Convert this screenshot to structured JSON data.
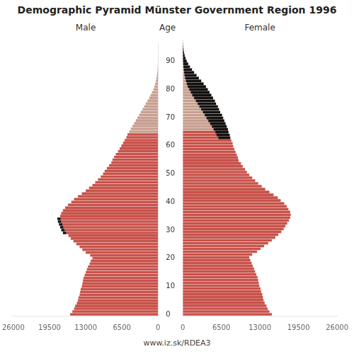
{
  "chart_data": {
    "type": "bar",
    "orientation": "horizontal",
    "title": "Demographic Pyramid Münster Government Region 1996",
    "subtitle": "www.iz.sk/RDEA3",
    "ylabel": "Age",
    "grid": false,
    "categories": [
      0,
      null,
      null,
      null,
      null,
      null,
      null,
      null,
      null,
      null,
      10,
      null,
      null,
      null,
      null,
      null,
      null,
      null,
      null,
      null,
      20,
      null,
      null,
      null,
      null,
      null,
      null,
      null,
      null,
      null,
      30,
      null,
      null,
      null,
      null,
      null,
      null,
      null,
      null,
      null,
      40,
      null,
      null,
      null,
      null,
      null,
      null,
      null,
      null,
      null,
      50,
      null,
      null,
      null,
      null,
      null,
      null,
      null,
      null,
      null,
      60,
      null,
      null,
      null,
      null,
      null,
      null,
      null,
      null,
      null,
      70,
      null,
      null,
      null,
      null,
      null,
      null,
      null,
      null,
      null,
      80,
      null,
      null,
      null,
      null,
      null,
      null,
      null,
      null,
      null,
      90,
      null,
      null,
      null,
      null,
      null,
      null
    ],
    "xlim": [
      0,
      26000
    ],
    "xticks": [
      0,
      6500,
      13000,
      19500,
      26000
    ],
    "x2lim": [
      26000,
      0
    ],
    "x2ticks": [
      26000,
      19500,
      13000,
      6500,
      0
    ],
    "series": [
      {
        "name": "Male",
        "axis": "x2",
        "values": [
          15800,
          15400,
          15100,
          14900,
          14600,
          14400,
          14300,
          14100,
          14000,
          13900,
          13700,
          13600,
          13500,
          13400,
          13200,
          13000,
          12800,
          12600,
          12300,
          12100,
          11800,
          12200,
          13000,
          13600,
          14100,
          14700,
          15200,
          15700,
          16100,
          16500,
          16800,
          17000,
          17200,
          17400,
          17500,
          17600,
          17400,
          17100,
          16700,
          16200,
          15600,
          15100,
          14400,
          13700,
          13000,
          12400,
          11800,
          11300,
          10800,
          10300,
          9900,
          9600,
          9200,
          8800,
          8400,
          8200,
          7900,
          7600,
          7200,
          6900,
          6600,
          6300,
          6000,
          5700,
          5500,
          5200,
          4900,
          4600,
          4300,
          4000,
          3700,
          3400,
          3100,
          2800,
          2500,
          2200,
          1900,
          1600,
          1350,
          1100,
          850,
          680,
          520,
          400,
          300,
          225,
          165,
          115,
          78,
          50,
          30,
          17,
          10,
          5,
          2,
          1,
          0
        ],
        "colors": [
          "#c8524a",
          "#c8524a",
          "#c8524a",
          "#c8524a",
          "#c8524a",
          "#c8524a",
          "#c8524a",
          "#c8524a",
          "#c8524a",
          "#c8524a",
          "#c8524a",
          "#c8524a",
          "#c8524a",
          "#c8524a",
          "#c8524a",
          "#c8524a",
          "#c8524a",
          "#c8524a",
          "#c8524a",
          "#c8524a",
          "#c8524a",
          "#c8524a",
          "#c8524a",
          "#c8524a",
          "#c8524a",
          "#c8524a",
          "#c8524a",
          "#c8524a",
          "#c8524a",
          "#c8524a",
          "#c8524a",
          "#c8524a",
          "#c8524a",
          "#c8524a",
          "#c8524a",
          "#c8524a",
          "#c8524a",
          "#c8524a",
          "#c8524a",
          "#c8524a",
          "#c8524a",
          "#c8524a",
          "#c8524a",
          "#c8524a",
          "#c8524a",
          "#c8524a",
          "#c8524a",
          "#c8524a",
          "#c8524a",
          "#c8524a",
          "#c8524a",
          "#c8524a",
          "#c8524a",
          "#c8524a",
          "#c8524a",
          "#c8524a",
          "#c8524a",
          "#c8524a",
          "#c8524a",
          "#c8524a",
          "#c8524a",
          "#c8524a",
          "#c8524a",
          "#c8524a",
          "#c8524a",
          "#c8a090",
          "#c8a090",
          "#c8a090",
          "#c8a090",
          "#c8a090",
          "#c8a090",
          "#c8a090",
          "#c8a090",
          "#c8a090",
          "#c8a090",
          "#c8a090",
          "#c8a090",
          "#c8a090",
          "#c8a090",
          "#c8a090",
          "#c8a090",
          "#c8a090",
          "#c8a090",
          "#c8a090",
          "#c8a090",
          "#c8a090",
          "#c8a090",
          "#c8a090",
          "#c8a090",
          "#c8a090",
          "#c8a090",
          "#c8a090",
          "#c8a090",
          "#c8a090",
          "#c8a090",
          "#c8a090",
          "#c8a090"
        ]
      },
      {
        "axis": "x2",
        "color": "#111111",
        "values": [
          null,
          null,
          null,
          null,
          null,
          null,
          null,
          null,
          null,
          null,
          null,
          null,
          null,
          null,
          null,
          null,
          null,
          null,
          null,
          null,
          null,
          null,
          null,
          null,
          null,
          null,
          null,
          null,
          null,
          600,
          600,
          600,
          600,
          600,
          600,
          null,
          null,
          null,
          null,
          null,
          null,
          null,
          null,
          null,
          null,
          null,
          null,
          null,
          null,
          null,
          null,
          null,
          null,
          null,
          null,
          null,
          null,
          null,
          null,
          null,
          null,
          null,
          null,
          null,
          null,
          null,
          null,
          null,
          null,
          null,
          null,
          null,
          null,
          null,
          null,
          null,
          null,
          null,
          null,
          null,
          null,
          null,
          null,
          null,
          null,
          null,
          null,
          null,
          null,
          null,
          null,
          null,
          null,
          null,
          null,
          null,
          null
        ]
      },
      {
        "name": "Female",
        "values": [
          15000,
          14600,
          14300,
          14100,
          13800,
          13600,
          13500,
          13400,
          13200,
          13100,
          12900,
          12800,
          12700,
          12600,
          12400,
          12200,
          12000,
          11800,
          11600,
          11400,
          11200,
          11700,
          12500,
          13100,
          13700,
          14400,
          15000,
          15600,
          16100,
          16600,
          17000,
          17300,
          17600,
          17900,
          18100,
          18200,
          18100,
          17800,
          17500,
          17100,
          16500,
          16000,
          15300,
          14600,
          13900,
          13300,
          12700,
          12200,
          11700,
          11200,
          10800,
          10500,
          10100,
          9800,
          9400,
          9300,
          9100,
          8900,
          8700,
          8500,
          8400,
          8200,
          8000,
          7900,
          7700,
          7600,
          7400,
          7200,
          7000,
          6800,
          6600,
          6300,
          6100,
          5900,
          5600,
          5400,
          5100,
          4800,
          4500,
          4200,
          3900,
          3500,
          3100,
          2700,
          2300,
          1900,
          1550,
          1200,
          900,
          650,
          460,
          300,
          195,
          120,
          68,
          35,
          15
        ],
        "colors": [
          "#c8524a",
          "#c8524a",
          "#c8524a",
          "#c8524a",
          "#c8524a",
          "#c8524a",
          "#c8524a",
          "#c8524a",
          "#c8524a",
          "#c8524a",
          "#c8524a",
          "#c8524a",
          "#c8524a",
          "#c8524a",
          "#c8524a",
          "#c8524a",
          "#c8524a",
          "#c8524a",
          "#c8524a",
          "#c8524a",
          "#c8524a",
          "#c8524a",
          "#c8524a",
          "#c8524a",
          "#c8524a",
          "#c8524a",
          "#c8524a",
          "#c8524a",
          "#c8524a",
          "#c8524a",
          "#c8524a",
          "#c8524a",
          "#c8524a",
          "#c8524a",
          "#c8524a",
          "#c8524a",
          "#c8524a",
          "#c8524a",
          "#c8524a",
          "#c8524a",
          "#c8524a",
          "#c8524a",
          "#c8524a",
          "#c8524a",
          "#c8524a",
          "#c8524a",
          "#c8524a",
          "#c8524a",
          "#c8524a",
          "#c8524a",
          "#c8524a",
          "#c8524a",
          "#c8524a",
          "#c8524a",
          "#c8524a",
          "#c8524a",
          "#c8524a",
          "#c8524a",
          "#c8524a",
          "#c8524a",
          "#c8524a",
          "#c8524a",
          "#c8524a",
          "#c8524a",
          "#c8524a",
          "#c8a090",
          "#c8a090",
          "#c8a090",
          "#c8a090",
          "#c8a090",
          "#c8a090",
          "#c8a090",
          "#c8a090",
          "#c8a090",
          "#c8a090",
          "#c8a090",
          "#c8a090",
          "#c8a090",
          "#c8a090",
          "#c8a090",
          "#c8a090",
          "#c8a090",
          "#c8a090",
          "#c8a090",
          "#c8a090",
          "#c8a090",
          "#c8a090",
          "#c8a090",
          "#c8a090",
          "#c8a090",
          "#c8a090",
          "#c8a090",
          "#c8a090",
          "#c8a090",
          "#c8a090",
          "#c8a090",
          "#c8a090"
        ]
      },
      {
        "color": "#111111",
        "values": [
          null,
          null,
          null,
          null,
          null,
          null,
          null,
          null,
          null,
          null,
          null,
          null,
          null,
          null,
          null,
          null,
          null,
          null,
          null,
          null,
          null,
          null,
          null,
          null,
          null,
          null,
          null,
          null,
          null,
          null,
          null,
          null,
          null,
          null,
          null,
          null,
          null,
          null,
          null,
          null,
          null,
          null,
          null,
          null,
          null,
          null,
          null,
          null,
          null,
          null,
          null,
          null,
          null,
          null,
          null,
          null,
          null,
          null,
          null,
          null,
          null,
          null,
          2000,
          2200,
          2200,
          2400,
          2500,
          2600,
          2700,
          2800,
          2900,
          2900,
          3000,
          3100,
          3100,
          3200,
          3200,
          3200,
          3150,
          3100,
          3050,
          2820,
          2580,
          2300,
          2000,
          1675,
          1385,
          1085,
          822,
          600,
          430,
          283,
          185,
          115,
          66,
          34,
          15
        ]
      }
    ]
  }
}
